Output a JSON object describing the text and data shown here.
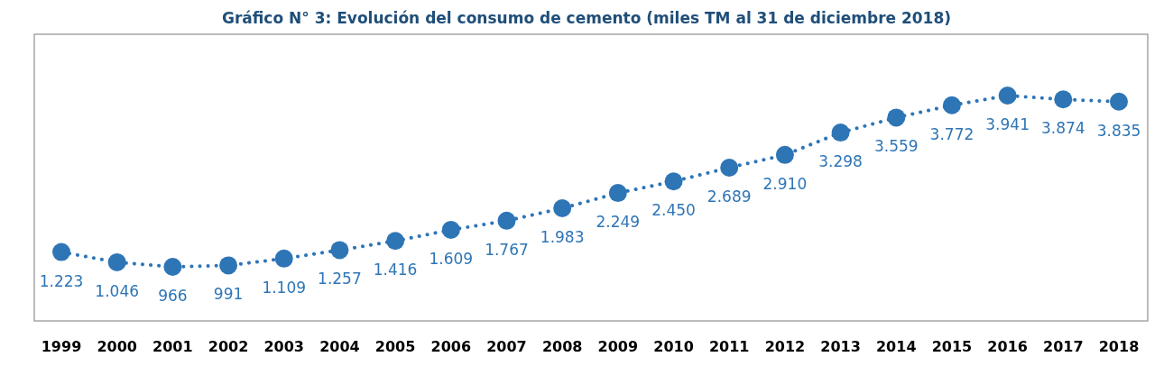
{
  "chart_data": {
    "type": "line",
    "title": "Gráfico N° 3: Evolución del consumo de cemento (miles TM al 31 de diciembre 2018)",
    "categories": [
      "1999",
      "2000",
      "2001",
      "2002",
      "2003",
      "2004",
      "2005",
      "2006",
      "2007",
      "2008",
      "2009",
      "2010",
      "2011",
      "2012",
      "2013",
      "2014",
      "2015",
      "2016",
      "2017",
      "2018"
    ],
    "series": [
      {
        "color": "#2e75b6",
        "values": [
          1223,
          1046,
          966,
          991,
          1109,
          1257,
          1416,
          1609,
          1767,
          1983,
          2249,
          2450,
          2689,
          2910,
          3298,
          3559,
          3772,
          3941,
          3874,
          3835
        ],
        "value_labels": [
          "1.223",
          "1.046",
          "966",
          "991",
          "1.109",
          "1.257",
          "1.416",
          "1.609",
          "1.767",
          "1.983",
          "2.249",
          "2.450",
          "2.689",
          "2.910",
          "3.298",
          "3.559",
          "3.772",
          "3.941",
          "3.874",
          "3.835"
        ]
      }
    ],
    "marker": "circle",
    "line_style": "dotted"
  }
}
